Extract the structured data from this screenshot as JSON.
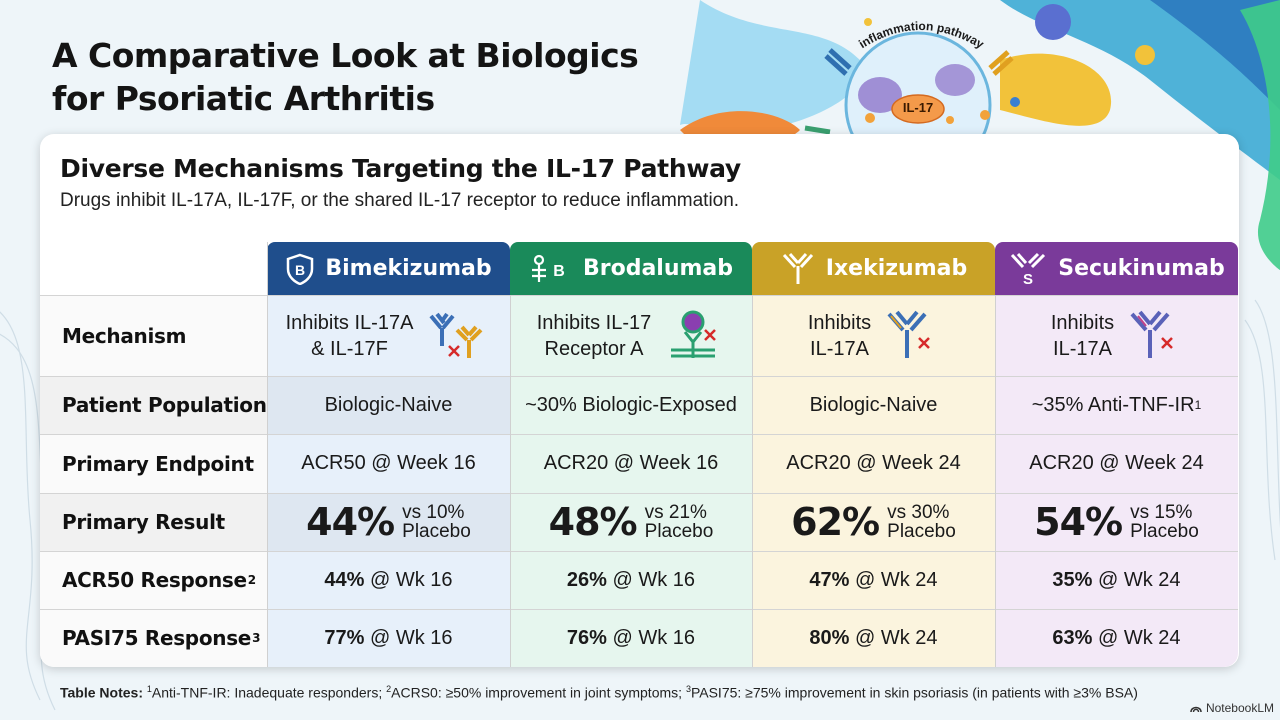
{
  "title_line1": "A Comparative Look at Biologics",
  "title_line2": "for Psoriatic Arthritis",
  "illustration": {
    "pathway_label": "inflammation pathway",
    "cell_label": "IL-17"
  },
  "section": {
    "title": "Diverse Mechanisms Targeting the IL-17 Pathway",
    "subtitle": "Drugs inhibit IL-17A, IL-17F, or the shared IL-17 receptor to reduce inflammation."
  },
  "row_labels": {
    "mechanism": "Mechanism",
    "population": "Patient Population",
    "endpoint": "Primary Endpoint",
    "result": "Primary Result",
    "acr50": "ACR50 Response",
    "acr50_sup": "2",
    "pasi75": "PASI75 Response",
    "pasi75_sup": "3"
  },
  "drugs": [
    {
      "name": "Bimekizumab",
      "icon": "shield-b-icon",
      "color": "#1f4e8c",
      "tint": "#e7f0fa",
      "mech1": "Inhibits IL-17A",
      "mech2": "& IL-17F",
      "population": "Biologic-Naive",
      "population_sup": "",
      "endpoint": "ACR50 @ Week 16",
      "result": "44%",
      "vs1": "vs 10%",
      "vs2": "Placebo",
      "acr50_val": "44%",
      "acr50_wk": " @ Wk 16",
      "pasi_val": "77%",
      "pasi_wk": " @ Wk 16"
    },
    {
      "name": "Brodalumab",
      "icon": "receptor-b-icon",
      "color": "#1a8a5a",
      "tint": "#e6f6ee",
      "mech1": "Inhibits IL-17",
      "mech2": "Receptor A",
      "population": "~30% Biologic-Exposed",
      "population_sup": "",
      "endpoint": "ACR20 @ Week 16",
      "result": "48%",
      "vs1": "vs 21%",
      "vs2": "Placebo",
      "acr50_val": "26%",
      "acr50_wk": " @ Wk 16",
      "pasi_val": "76%",
      "pasi_wk": " @ Wk 16"
    },
    {
      "name": "Ixekizumab",
      "icon": "antibody-y-icon",
      "color": "#c9a227",
      "tint": "#fbf4de",
      "mech1": "Inhibits",
      "mech2": "IL-17A",
      "population": "Biologic-Naive",
      "population_sup": "",
      "endpoint": "ACR20 @ Week 24",
      "result": "62%",
      "vs1": "vs 30%",
      "vs2": "Placebo",
      "acr50_val": "47%",
      "acr50_wk": " @ Wk 24",
      "pasi_val": "80%",
      "pasi_wk": " @ Wk 24"
    },
    {
      "name": "Secukinumab",
      "icon": "antibody-s-icon",
      "color": "#7a3a9a",
      "tint": "#f3e9f7",
      "mech1": "Inhibits",
      "mech2": "IL-17A",
      "population": "~35% Anti-TNF-IR",
      "population_sup": "1",
      "endpoint": "ACR20 @ Week 24",
      "result": "54%",
      "vs1": "vs 15%",
      "vs2": "Placebo",
      "acr50_val": "35%",
      "acr50_wk": " @ Wk 24",
      "pasi_val": "63%",
      "pasi_wk": " @ Wk 24"
    }
  ],
  "notes": {
    "label": "Table Notes:",
    "n1_sup": "1",
    "n1": "Anti-TNF-IR: Inadequate responders; ",
    "n2_sup": "2",
    "n2": "ACRS0: ≥50% improvement in joint symptoms; ",
    "n3_sup": "3",
    "n3": "PASI75: ≥75% improvement in skin psoriasis (in patients with ≥3% BSA)"
  },
  "brand": "NotebookLM"
}
